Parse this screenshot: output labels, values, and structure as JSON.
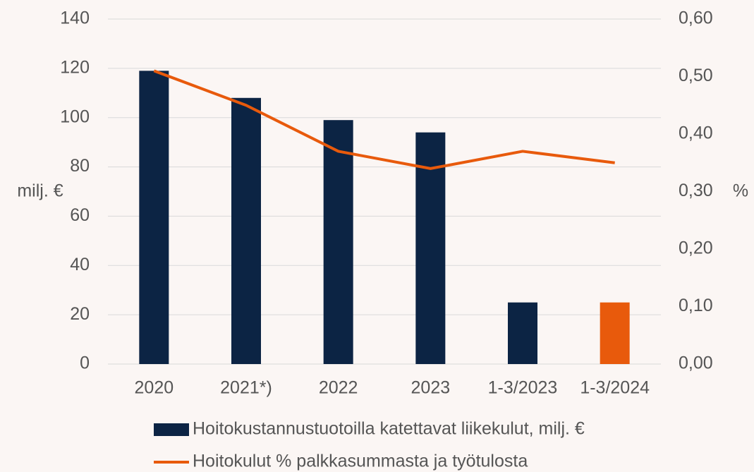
{
  "chart_data": {
    "type": "bar-line",
    "categories": [
      "2020",
      "2021*)",
      "2022",
      "2023",
      "1-3/2023",
      "1-3/2024"
    ],
    "series": [
      {
        "name": "Hoitokustannustuotoilla katettavat liikekulut, milj. €",
        "type": "bar",
        "color": "#0c2444",
        "colors": [
          "#0c2444",
          "#0c2444",
          "#0c2444",
          "#0c2444",
          "#0c2444",
          "#e85a0c"
        ],
        "values": [
          119,
          108,
          99,
          94,
          25,
          25
        ]
      },
      {
        "name": "Hoitokulut % palkkasummasta ja työtulosta",
        "type": "line",
        "color": "#e85a0c",
        "axis": "y2",
        "values": [
          0.51,
          0.45,
          0.37,
          0.34,
          0.37,
          0.35
        ]
      }
    ],
    "ylabel": "milj. €",
    "y2label": "%",
    "ylim": [
      0,
      140
    ],
    "yticks": [
      0,
      20,
      40,
      60,
      80,
      100,
      120,
      140
    ],
    "y2lim": [
      0,
      0.6
    ],
    "y2ticks": [
      {
        "value": 0,
        "label": "0,00"
      },
      {
        "value": 0.1,
        "label": "0,10"
      },
      {
        "value": 0.2,
        "label": "0,20"
      },
      {
        "value": 0.3,
        "label": "0,30"
      },
      {
        "value": 0.4,
        "label": "0,40"
      },
      {
        "value": 0.5,
        "label": "0,50"
      },
      {
        "value": 0.6,
        "label": "0,60"
      }
    ],
    "grid": true
  }
}
